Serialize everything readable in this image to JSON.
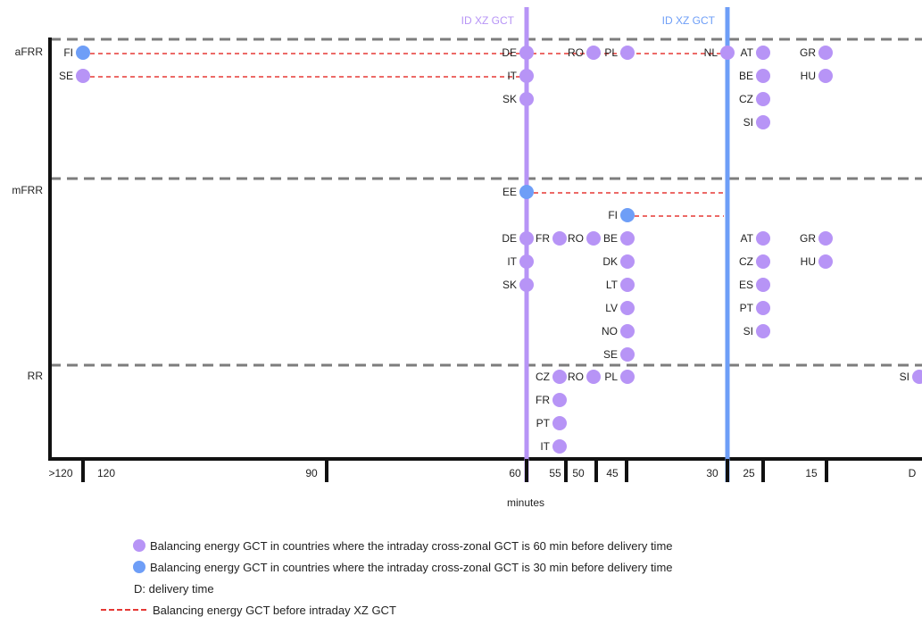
{
  "chart_data": {
    "type": "scatter",
    "xlabel": "minutes",
    "x_ticks": [
      ">120",
      "120",
      "90",
      "60",
      "55",
      "50",
      "45",
      "30",
      "25",
      "15",
      "D"
    ],
    "gct_lines": [
      {
        "label": "ID XZ GCT",
        "at": "60",
        "color": "#b794f6"
      },
      {
        "label": "ID XZ GCT",
        "at": "30",
        "color": "#6e9ef7"
      }
    ],
    "products": [
      "aFRR",
      "mFRR",
      "RR"
    ],
    "colors": {
      "gct60": "#b794f6",
      "gct30": "#6e9ef7",
      "before": "#e53935",
      "divider": "#7d7d7d"
    },
    "points": [
      {
        "product": "aFRR",
        "country": "FI",
        "gct": ">120",
        "group": "30",
        "before_id_gct": true
      },
      {
        "product": "aFRR",
        "country": "SE",
        "gct": ">120",
        "group": "60",
        "before_id_gct": true
      },
      {
        "product": "aFRR",
        "country": "DE",
        "gct": "60",
        "group": "60"
      },
      {
        "product": "aFRR",
        "country": "IT",
        "gct": "60",
        "group": "60"
      },
      {
        "product": "aFRR",
        "country": "SK",
        "gct": "60",
        "group": "60"
      },
      {
        "product": "aFRR",
        "country": "RO",
        "gct": "50",
        "group": "60"
      },
      {
        "product": "aFRR",
        "country": "PL",
        "gct": "45",
        "group": "60"
      },
      {
        "product": "aFRR",
        "country": "NL",
        "gct": "30",
        "group": "60"
      },
      {
        "product": "aFRR",
        "country": "AT",
        "gct": "25",
        "group": "60"
      },
      {
        "product": "aFRR",
        "country": "BE",
        "gct": "25",
        "group": "60"
      },
      {
        "product": "aFRR",
        "country": "CZ",
        "gct": "25",
        "group": "60"
      },
      {
        "product": "aFRR",
        "country": "SI",
        "gct": "25",
        "group": "60"
      },
      {
        "product": "aFRR",
        "country": "GR",
        "gct": "15",
        "group": "60"
      },
      {
        "product": "aFRR",
        "country": "HU",
        "gct": "15",
        "group": "60"
      },
      {
        "product": "mFRR",
        "country": "EE",
        "gct": "60",
        "group": "30",
        "before_id_gct": true
      },
      {
        "product": "mFRR",
        "country": "FI",
        "gct": "45",
        "group": "30",
        "before_id_gct": true
      },
      {
        "product": "mFRR",
        "country": "DE",
        "gct": "60",
        "group": "60"
      },
      {
        "product": "mFRR",
        "country": "IT",
        "gct": "60",
        "group": "60"
      },
      {
        "product": "mFRR",
        "country": "SK",
        "gct": "60",
        "group": "60"
      },
      {
        "product": "mFRR",
        "country": "FR",
        "gct": "55",
        "group": "60"
      },
      {
        "product": "mFRR",
        "country": "RO",
        "gct": "50",
        "group": "60"
      },
      {
        "product": "mFRR",
        "country": "BE",
        "gct": "45",
        "group": "60"
      },
      {
        "product": "mFRR",
        "country": "DK",
        "gct": "45",
        "group": "60"
      },
      {
        "product": "mFRR",
        "country": "LT",
        "gct": "45",
        "group": "60"
      },
      {
        "product": "mFRR",
        "country": "LV",
        "gct": "45",
        "group": "60"
      },
      {
        "product": "mFRR",
        "country": "NO",
        "gct": "45",
        "group": "60"
      },
      {
        "product": "mFRR",
        "country": "SE",
        "gct": "45",
        "group": "60"
      },
      {
        "product": "mFRR",
        "country": "AT",
        "gct": "25",
        "group": "60"
      },
      {
        "product": "mFRR",
        "country": "CZ",
        "gct": "25",
        "group": "60"
      },
      {
        "product": "mFRR",
        "country": "ES",
        "gct": "25",
        "group": "60"
      },
      {
        "product": "mFRR",
        "country": "PT",
        "gct": "25",
        "group": "60"
      },
      {
        "product": "mFRR",
        "country": "SI",
        "gct": "25",
        "group": "60"
      },
      {
        "product": "mFRR",
        "country": "GR",
        "gct": "15",
        "group": "60"
      },
      {
        "product": "mFRR",
        "country": "HU",
        "gct": "15",
        "group": "60"
      },
      {
        "product": "RR",
        "country": "CZ",
        "gct": "55",
        "group": "60"
      },
      {
        "product": "RR",
        "country": "FR",
        "gct": "55",
        "group": "60"
      },
      {
        "product": "RR",
        "country": "PT",
        "gct": "55",
        "group": "60"
      },
      {
        "product": "RR",
        "country": "IT",
        "gct": "55",
        "group": "60"
      },
      {
        "product": "RR",
        "country": "RO",
        "gct": "50",
        "group": "60"
      },
      {
        "product": "RR",
        "country": "PL",
        "gct": "45",
        "group": "60"
      },
      {
        "product": "RR",
        "country": "SI",
        "gct": "D",
        "group": "60"
      }
    ]
  },
  "legend": {
    "gct60": "Balancing energy GCT in countries where the intraday cross-zonal GCT is 60 min before delivery time",
    "gct30": "Balancing energy GCT in countries where the intraday cross-zonal GCT is 30 min before delivery time",
    "delivery": "D: delivery time",
    "before": "Balancing energy GCT before intraday XZ GCT"
  }
}
